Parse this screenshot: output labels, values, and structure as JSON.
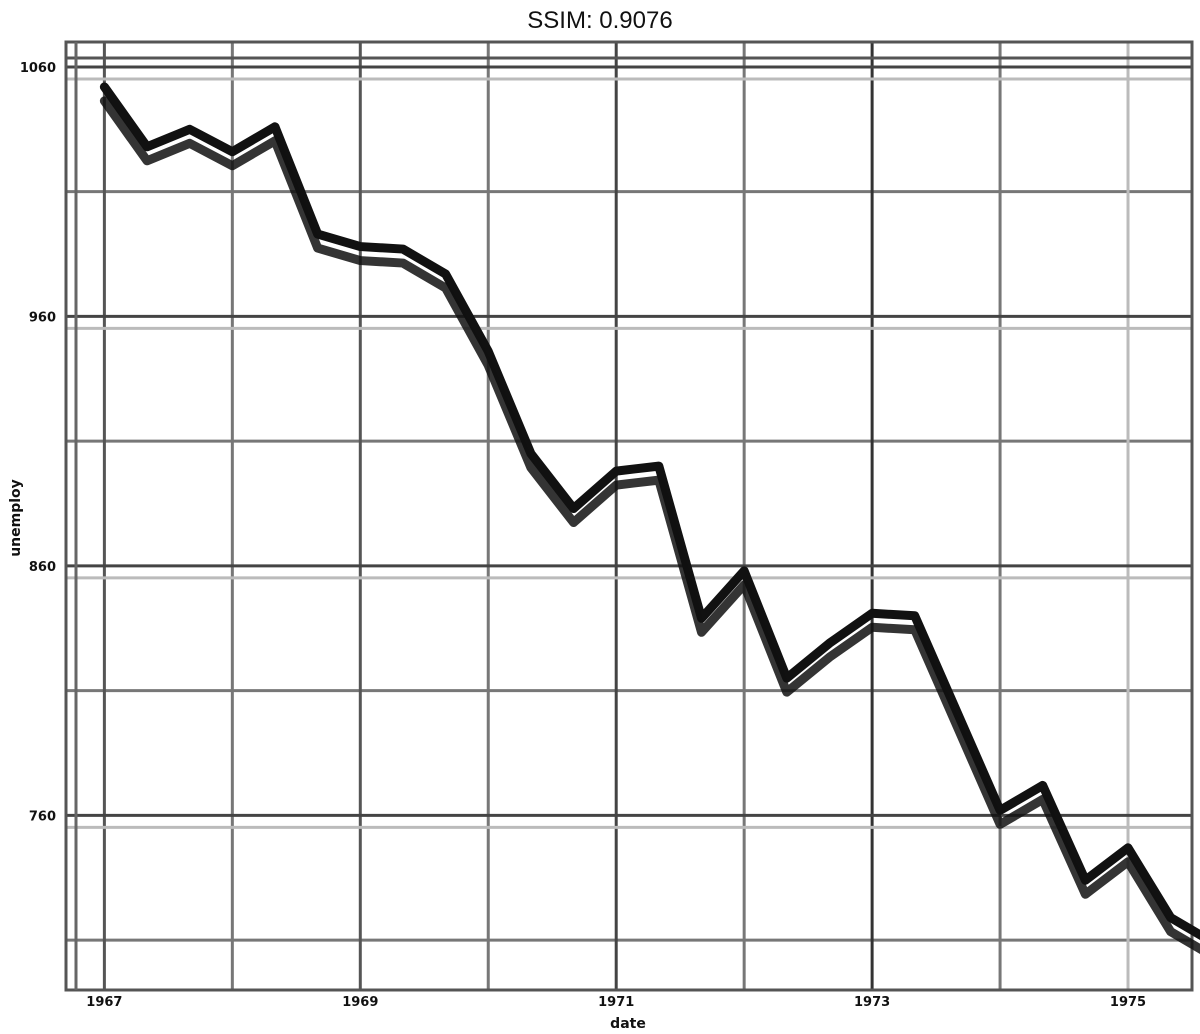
{
  "chart_data": {
    "type": "line",
    "title": "SSIM: 0.9076",
    "xlabel": "date",
    "ylabel": "unemploy",
    "xlim": [
      1966.7,
      1975.5
    ],
    "ylim": [
      690,
      1070
    ],
    "x_ticks": [
      {
        "value": 1967,
        "label": "1967"
      },
      {
        "value": 1969,
        "label": "1969"
      },
      {
        "value": 1971,
        "label": "1971"
      },
      {
        "value": 1973,
        "label": "1973"
      },
      {
        "value": 1975,
        "label": "1975"
      }
    ],
    "y_ticks": [
      {
        "value": 1060,
        "label": "1060"
      },
      {
        "value": 960,
        "label": "960"
      },
      {
        "value": 860,
        "label": "860"
      },
      {
        "value": 760,
        "label": "760"
      }
    ],
    "grid": true,
    "series": [
      {
        "x": [
          1967.0,
          1967.3333,
          1967.6667,
          1968.0,
          1968.3333,
          1968.6667,
          1969.0,
          1969.3333,
          1969.6667,
          1970.0,
          1970.3333,
          1970.6667,
          1971.0,
          1971.3333,
          1971.6667,
          1972.0,
          1972.3333,
          1972.6667,
          1973.0,
          1973.3333,
          1973.6667,
          1974.0,
          1974.3333,
          1974.6667,
          1975.0,
          1975.3333,
          1975.6667
        ],
        "y": [
          1052,
          1028,
          1035,
          1026,
          1036,
          993,
          988,
          987,
          977,
          946,
          905,
          883,
          898,
          900,
          839,
          858,
          815,
          829,
          841,
          840,
          801,
          762,
          772,
          734,
          747,
          719,
          709
        ]
      }
    ]
  }
}
